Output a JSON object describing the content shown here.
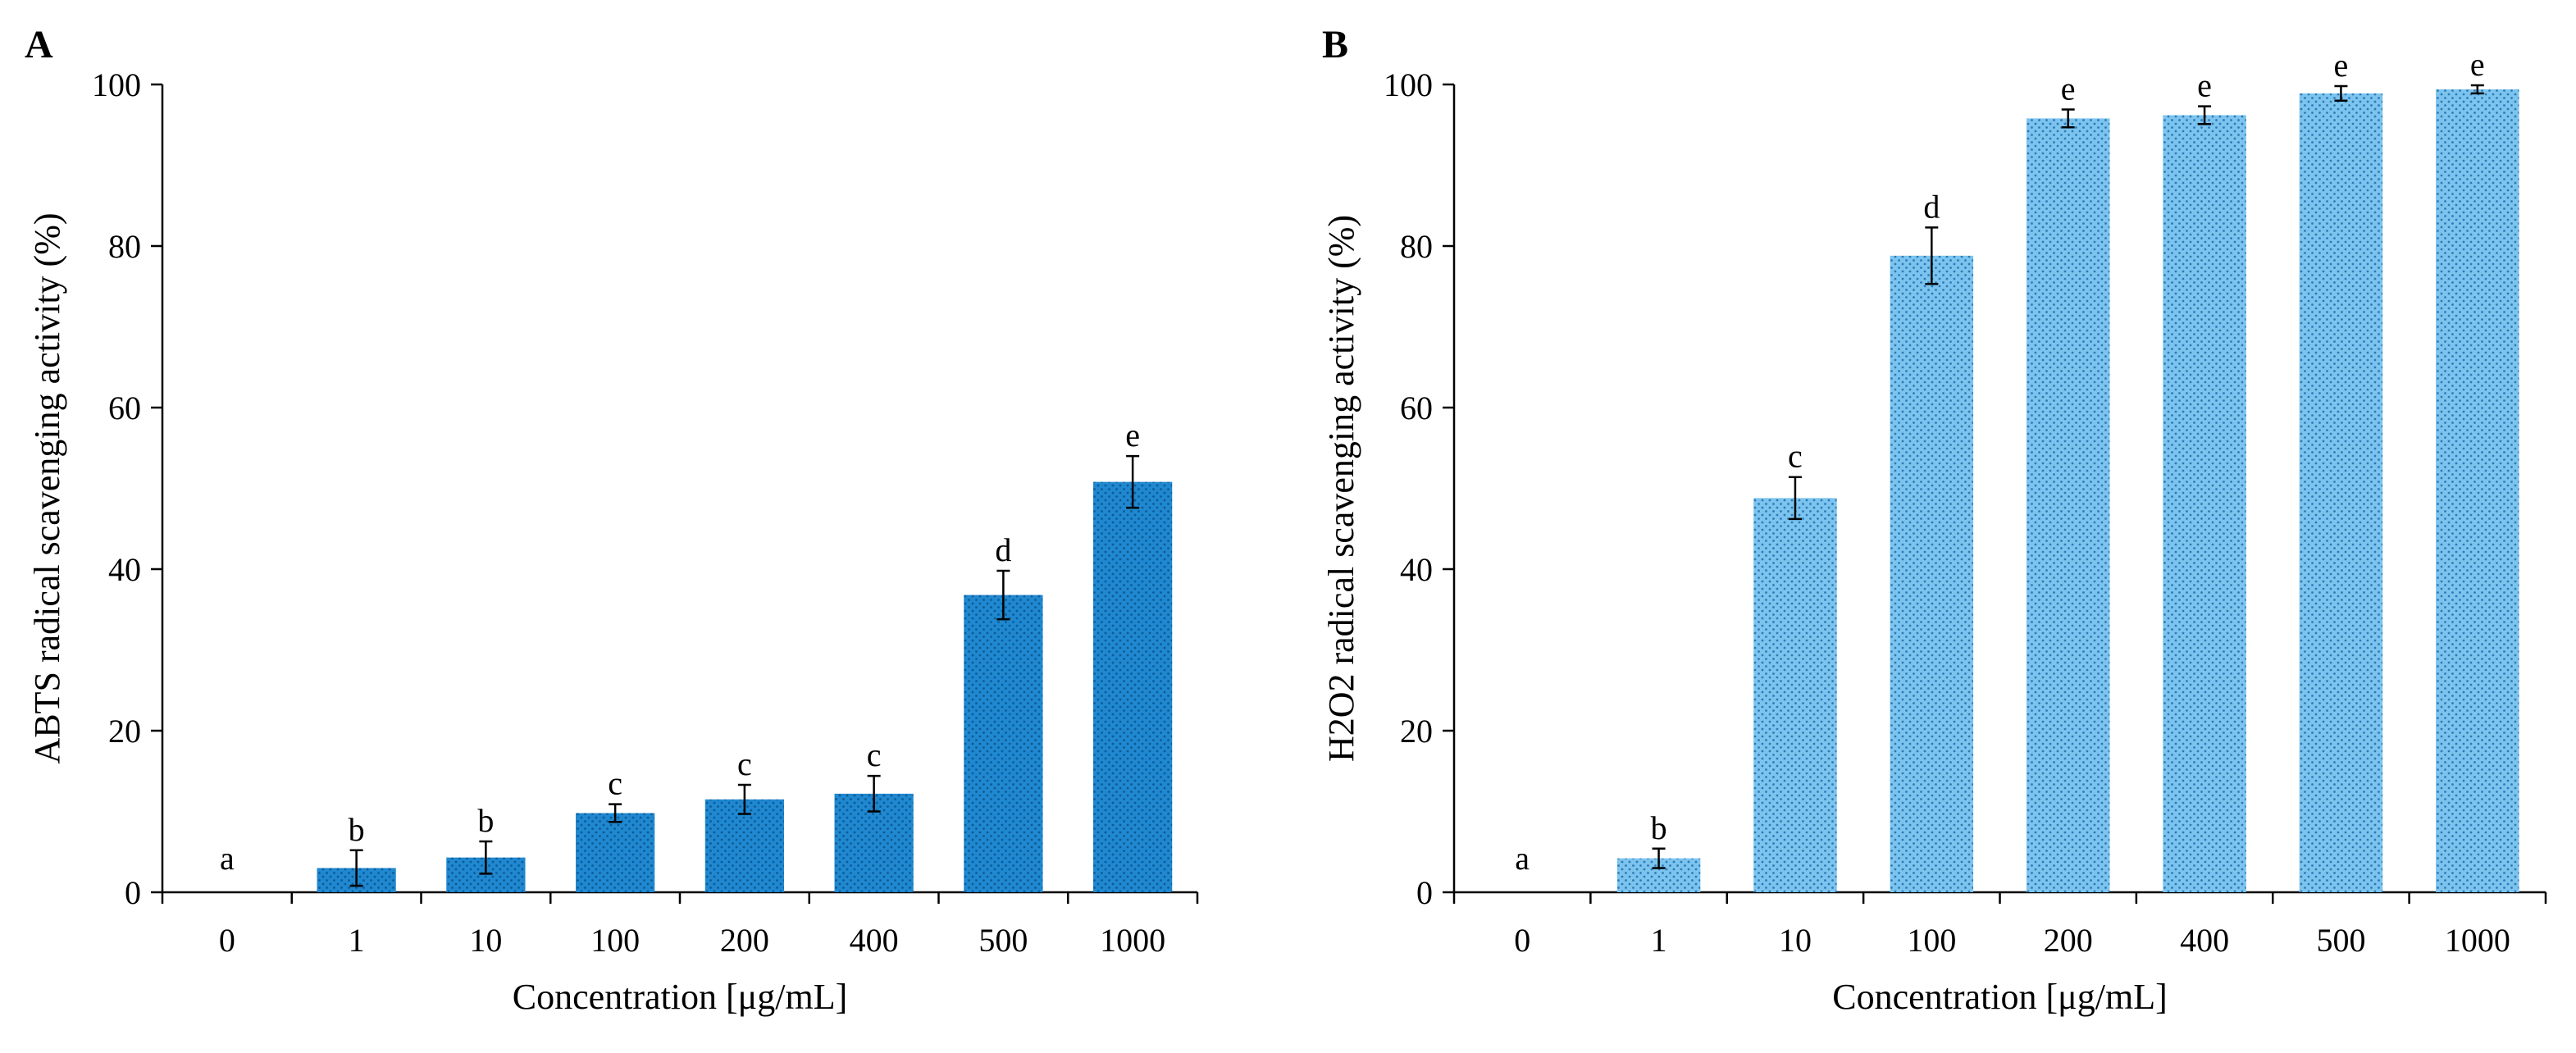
{
  "chart_data": [
    {
      "type": "bar",
      "panel": "A",
      "categories": [
        "0",
        "1",
        "10",
        "100",
        "200",
        "400",
        "500",
        "1000"
      ],
      "values": [
        0,
        3.0,
        4.3,
        9.8,
        11.5,
        12.2,
        36.8,
        50.8
      ],
      "errors": [
        0,
        2.2,
        2.0,
        1.1,
        1.8,
        2.2,
        3.0,
        3.2
      ],
      "significance": [
        "a",
        "b",
        "b",
        "c",
        "c",
        "c",
        "d",
        "e"
      ],
      "xlabel": "Concentration  [μg/mL]",
      "ylabel": "ABTS radical scavenging activity (%)",
      "ylim": [
        0,
        100
      ],
      "yticks": [
        0,
        20,
        40,
        60,
        80,
        100
      ],
      "bar_color": "#1f88d0",
      "dot_color": "#0e5a93"
    },
    {
      "type": "bar",
      "panel": "B",
      "categories": [
        "0",
        "1",
        "10",
        "100",
        "200",
        "400",
        "500",
        "1000"
      ],
      "values": [
        0,
        4.2,
        48.8,
        78.8,
        95.8,
        96.2,
        98.9,
        99.4
      ],
      "errors": [
        0,
        1.2,
        2.6,
        3.5,
        1.1,
        1.1,
        0.9,
        0.5
      ],
      "significance": [
        "a",
        "b",
        "c",
        "d",
        "e",
        "e",
        "e",
        "e"
      ],
      "xlabel": "Concentration  [μg/mL]",
      "ylabel": "H2O2  radical scavenging activity (%)",
      "ylim": [
        0,
        100
      ],
      "yticks": [
        0,
        20,
        40,
        60,
        80,
        100
      ],
      "bar_color": "#7cc4ee",
      "dot_color": "#2c7ab8"
    }
  ]
}
